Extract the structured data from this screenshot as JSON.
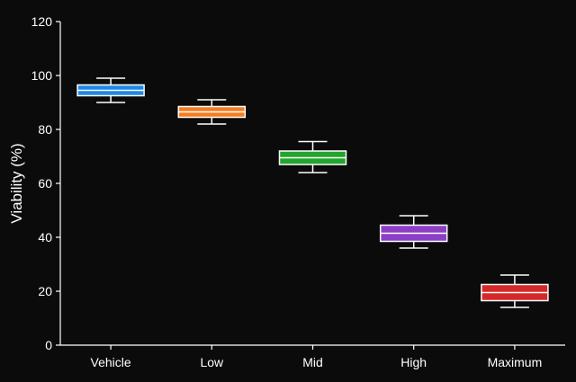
{
  "chart_data": {
    "type": "box",
    "title": "",
    "xlabel": "",
    "ylabel": "Viability (%)",
    "ylim": [
      0,
      120
    ],
    "yticks": [
      0,
      20,
      40,
      60,
      80,
      100,
      120
    ],
    "grid": false,
    "categories": [
      "Vehicle",
      "Low",
      "Mid",
      "High",
      "Maximum"
    ],
    "boxes": [
      {
        "category": "Vehicle",
        "min": 90,
        "q1": 92.5,
        "median": 94.5,
        "q3": 96.5,
        "max": 99,
        "color": "#1e88e5"
      },
      {
        "category": "Low",
        "min": 82,
        "q1": 84.5,
        "median": 86.5,
        "q3": 88.5,
        "max": 91,
        "color": "#f57c1f"
      },
      {
        "category": "Mid",
        "min": 64,
        "q1": 67,
        "median": 69.5,
        "q3": 72,
        "max": 75.5,
        "color": "#22a52e"
      },
      {
        "category": "High",
        "min": 36,
        "q1": 38.5,
        "median": 41.5,
        "q3": 44.5,
        "max": 48,
        "color": "#8a3fc6"
      },
      {
        "category": "Maximum",
        "min": 14,
        "q1": 16.5,
        "median": 19.5,
        "q3": 22.5,
        "max": 26,
        "color": "#d62828"
      }
    ]
  }
}
